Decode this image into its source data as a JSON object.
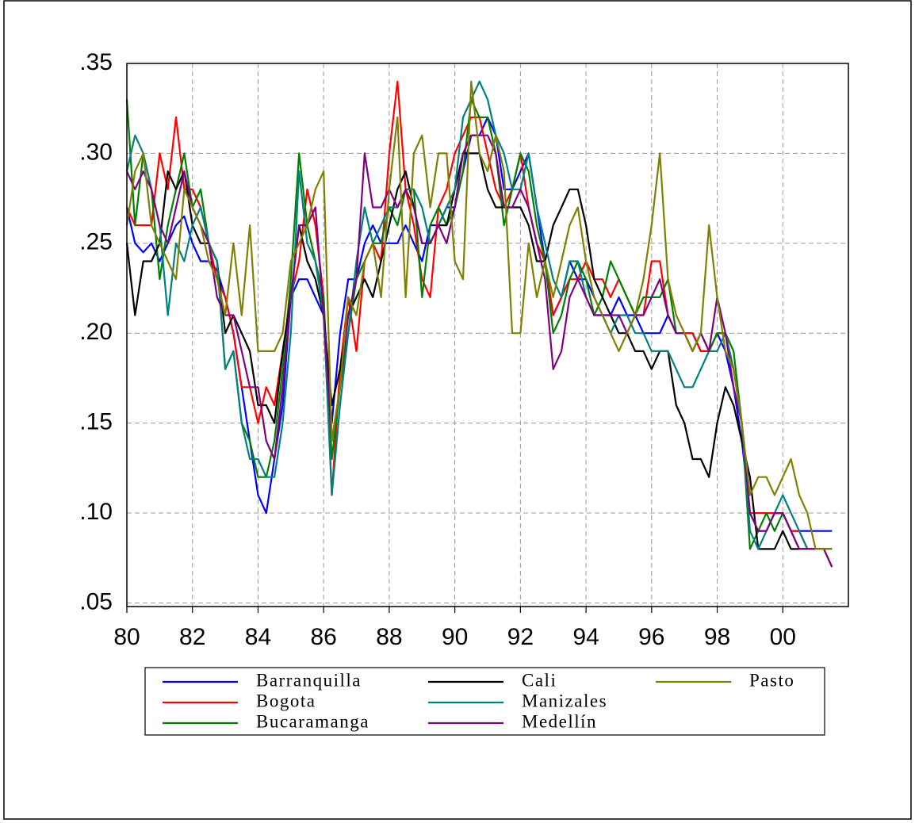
{
  "chart_data": {
    "type": "line",
    "x": [
      1980,
      1980.25,
      1980.5,
      1980.75,
      1981,
      1981.25,
      1981.5,
      1981.75,
      1982,
      1982.25,
      1982.5,
      1982.75,
      1983,
      1983.25,
      1983.5,
      1983.75,
      1984,
      1984.25,
      1984.5,
      1984.75,
      1985,
      1985.25,
      1985.5,
      1985.75,
      1986,
      1986.25,
      1986.5,
      1986.75,
      1987,
      1987.25,
      1987.5,
      1987.75,
      1988,
      1988.25,
      1988.5,
      1988.75,
      1989,
      1989.25,
      1989.5,
      1989.75,
      1990,
      1990.25,
      1990.5,
      1990.75,
      1991,
      1991.25,
      1991.5,
      1991.75,
      1992,
      1992.25,
      1992.5,
      1992.75,
      1993,
      1993.25,
      1993.5,
      1993.75,
      1994,
      1994.25,
      1994.5,
      1994.75,
      1995,
      1995.25,
      1995.5,
      1995.75,
      1996,
      1996.25,
      1996.5,
      1996.75,
      1997,
      1997.25,
      1997.5,
      1997.75,
      1998,
      1998.25,
      1998.5,
      1998.75,
      1999,
      1999.25,
      1999.5,
      1999.75,
      2000,
      2000.25,
      2000.5,
      2000.75,
      2001,
      2001.25,
      2001.5
    ],
    "series": [
      {
        "name": "Barranquilla",
        "color": "#0000ff",
        "values": [
          0.27,
          0.25,
          0.245,
          0.25,
          0.24,
          0.25,
          0.26,
          0.265,
          0.25,
          0.24,
          0.24,
          0.235,
          0.22,
          0.2,
          0.17,
          0.14,
          0.11,
          0.1,
          0.13,
          0.16,
          0.22,
          0.23,
          0.23,
          0.22,
          0.21,
          0.15,
          0.2,
          0.23,
          0.23,
          0.25,
          0.26,
          0.25,
          0.25,
          0.25,
          0.26,
          0.25,
          0.24,
          0.26,
          0.26,
          0.27,
          0.27,
          0.29,
          0.31,
          0.31,
          0.32,
          0.31,
          0.28,
          0.28,
          0.29,
          0.3,
          0.27,
          0.24,
          0.21,
          0.22,
          0.24,
          0.23,
          0.23,
          0.22,
          0.21,
          0.21,
          0.22,
          0.21,
          0.21,
          0.2,
          0.2,
          0.2,
          0.21,
          0.2,
          0.2,
          0.2,
          0.19,
          0.19,
          0.2,
          0.19,
          0.17,
          0.14,
          0.1,
          0.09,
          0.09,
          0.1,
          0.1,
          0.09,
          0.09,
          0.09,
          0.09,
          0.09,
          0.09
        ]
      },
      {
        "name": "Bogota",
        "color": "#ff0000",
        "values": [
          0.27,
          0.26,
          0.26,
          0.26,
          0.3,
          0.28,
          0.32,
          0.28,
          0.28,
          0.27,
          0.25,
          0.23,
          0.22,
          0.2,
          0.17,
          0.17,
          0.15,
          0.17,
          0.16,
          0.19,
          0.22,
          0.24,
          0.28,
          0.26,
          0.22,
          0.11,
          0.18,
          0.22,
          0.19,
          0.24,
          0.25,
          0.24,
          0.3,
          0.34,
          0.28,
          0.26,
          0.23,
          0.22,
          0.27,
          0.28,
          0.3,
          0.31,
          0.32,
          0.32,
          0.3,
          0.28,
          0.27,
          0.28,
          0.3,
          0.27,
          0.25,
          0.24,
          0.21,
          0.22,
          0.23,
          0.23,
          0.24,
          0.23,
          0.23,
          0.22,
          0.23,
          0.22,
          0.21,
          0.21,
          0.24,
          0.24,
          0.21,
          0.2,
          0.2,
          0.2,
          0.19,
          0.19,
          0.2,
          0.2,
          0.18,
          0.15,
          0.1,
          0.1,
          0.1,
          0.1,
          0.1,
          0.09,
          0.09,
          0.08,
          0.08,
          0.08,
          0.07
        ]
      },
      {
        "name": "Bucaramanga",
        "color": "#008000",
        "values": [
          0.33,
          0.26,
          0.3,
          0.28,
          0.23,
          0.26,
          0.28,
          0.3,
          0.27,
          0.28,
          0.25,
          0.24,
          0.18,
          0.19,
          0.15,
          0.14,
          0.12,
          0.12,
          0.14,
          0.18,
          0.23,
          0.3,
          0.26,
          0.24,
          0.22,
          0.13,
          0.17,
          0.2,
          0.23,
          0.24,
          0.25,
          0.25,
          0.27,
          0.26,
          0.28,
          0.28,
          0.22,
          0.26,
          0.27,
          0.26,
          0.27,
          0.29,
          0.33,
          0.32,
          0.32,
          0.3,
          0.26,
          0.28,
          0.3,
          0.29,
          0.26,
          0.24,
          0.2,
          0.21,
          0.23,
          0.24,
          0.23,
          0.21,
          0.22,
          0.24,
          0.23,
          0.22,
          0.21,
          0.22,
          0.22,
          0.22,
          0.23,
          0.2,
          0.2,
          0.19,
          0.2,
          0.19,
          0.2,
          0.2,
          0.19,
          0.15,
          0.08,
          0.09,
          0.1,
          0.09,
          0.1,
          0.09,
          0.08,
          0.08,
          0.08,
          0.08,
          0.08
        ]
      },
      {
        "name": "Cali",
        "color": "#000000",
        "values": [
          0.25,
          0.21,
          0.24,
          0.24,
          0.25,
          0.29,
          0.28,
          0.29,
          0.26,
          0.25,
          0.25,
          0.24,
          0.2,
          0.21,
          0.2,
          0.19,
          0.16,
          0.16,
          0.15,
          0.19,
          0.22,
          0.26,
          0.24,
          0.23,
          0.21,
          0.16,
          0.18,
          0.21,
          0.22,
          0.23,
          0.22,
          0.24,
          0.26,
          0.28,
          0.29,
          0.27,
          0.25,
          0.25,
          0.26,
          0.26,
          0.28,
          0.3,
          0.3,
          0.3,
          0.28,
          0.27,
          0.27,
          0.27,
          0.27,
          0.26,
          0.24,
          0.24,
          0.26,
          0.27,
          0.28,
          0.28,
          0.26,
          0.23,
          0.22,
          0.21,
          0.2,
          0.2,
          0.19,
          0.19,
          0.18,
          0.19,
          0.19,
          0.16,
          0.15,
          0.13,
          0.13,
          0.12,
          0.15,
          0.17,
          0.16,
          0.14,
          0.12,
          0.08,
          0.08,
          0.08,
          0.09,
          0.08,
          0.08,
          0.08,
          0.08,
          0.08,
          0.08
        ]
      },
      {
        "name": "Manizales",
        "color": "#008080",
        "values": [
          0.29,
          0.31,
          0.3,
          0.28,
          0.26,
          0.21,
          0.25,
          0.24,
          0.26,
          0.27,
          0.25,
          0.24,
          0.18,
          0.19,
          0.15,
          0.13,
          0.13,
          0.12,
          0.12,
          0.15,
          0.2,
          0.29,
          0.25,
          0.24,
          0.21,
          0.11,
          0.16,
          0.2,
          0.24,
          0.27,
          0.25,
          0.26,
          0.27,
          0.27,
          0.28,
          0.28,
          0.27,
          0.25,
          0.26,
          0.27,
          0.28,
          0.32,
          0.33,
          0.34,
          0.33,
          0.31,
          0.3,
          0.28,
          0.28,
          0.3,
          0.27,
          0.25,
          0.23,
          0.22,
          0.24,
          0.24,
          0.22,
          0.21,
          0.21,
          0.2,
          0.21,
          0.21,
          0.2,
          0.2,
          0.19,
          0.19,
          0.19,
          0.18,
          0.17,
          0.17,
          0.18,
          0.19,
          0.19,
          0.2,
          0.18,
          0.15,
          0.09,
          0.08,
          0.09,
          0.1,
          0.11,
          0.1,
          0.09,
          0.08,
          0.08,
          0.08,
          0.08
        ]
      },
      {
        "name": "Medellín",
        "color": "#800080",
        "values": [
          0.29,
          0.28,
          0.29,
          0.28,
          0.26,
          0.25,
          0.27,
          0.29,
          0.27,
          0.26,
          0.25,
          0.22,
          0.21,
          0.21,
          0.19,
          0.17,
          0.17,
          0.14,
          0.13,
          0.17,
          0.22,
          0.26,
          0.26,
          0.27,
          0.21,
          0.14,
          0.17,
          0.21,
          0.23,
          0.3,
          0.27,
          0.27,
          0.28,
          0.27,
          0.28,
          0.27,
          0.25,
          0.25,
          0.26,
          0.25,
          0.27,
          0.3,
          0.31,
          0.31,
          0.31,
          0.3,
          0.27,
          0.27,
          0.28,
          0.27,
          0.25,
          0.23,
          0.18,
          0.19,
          0.22,
          0.23,
          0.22,
          0.21,
          0.21,
          0.21,
          0.21,
          0.2,
          0.21,
          0.21,
          0.22,
          0.23,
          0.21,
          0.2,
          0.2,
          0.19,
          0.2,
          0.19,
          0.22,
          0.2,
          0.17,
          0.15,
          0.1,
          0.09,
          0.09,
          0.1,
          0.1,
          0.09,
          0.08,
          0.08,
          0.08,
          0.08,
          0.07
        ]
      },
      {
        "name": "Pasto",
        "color": "#808000",
        "values": [
          0.26,
          0.29,
          0.3,
          0.26,
          0.25,
          0.24,
          0.23,
          0.28,
          0.27,
          0.26,
          0.24,
          0.23,
          0.21,
          0.25,
          0.21,
          0.26,
          0.19,
          0.19,
          0.19,
          0.2,
          0.24,
          0.25,
          0.26,
          0.28,
          0.29,
          0.14,
          0.17,
          0.22,
          0.21,
          0.24,
          0.25,
          0.22,
          0.28,
          0.32,
          0.22,
          0.3,
          0.31,
          0.27,
          0.3,
          0.3,
          0.24,
          0.23,
          0.34,
          0.3,
          0.29,
          0.31,
          0.29,
          0.2,
          0.2,
          0.25,
          0.22,
          0.24,
          0.22,
          0.24,
          0.26,
          0.27,
          0.24,
          0.22,
          0.21,
          0.2,
          0.19,
          0.2,
          0.21,
          0.23,
          0.26,
          0.3,
          0.23,
          0.21,
          0.2,
          0.19,
          0.2,
          0.26,
          0.22,
          0.19,
          0.18,
          0.15,
          0.11,
          0.12,
          0.12,
          0.11,
          0.12,
          0.13,
          0.11,
          0.1,
          0.08,
          0.08,
          0.08
        ]
      }
    ],
    "xlim": [
      1980,
      2002
    ],
    "xticks": [
      {
        "value": 1980,
        "label": "80"
      },
      {
        "value": 1982,
        "label": "82"
      },
      {
        "value": 1984,
        "label": "84"
      },
      {
        "value": 1986,
        "label": "86"
      },
      {
        "value": 1988,
        "label": "88"
      },
      {
        "value": 1990,
        "label": "90"
      },
      {
        "value": 1992,
        "label": "92"
      },
      {
        "value": 1994,
        "label": "94"
      },
      {
        "value": 1996,
        "label": "96"
      },
      {
        "value": 1998,
        "label": "98"
      },
      {
        "value": 2000,
        "label": "00"
      }
    ],
    "ylim": [
      0.048,
      0.35
    ],
    "yticks": [
      {
        "value": 0.05,
        "label": ".05"
      },
      {
        "value": 0.1,
        "label": ".10"
      },
      {
        "value": 0.15,
        "label": ".15"
      },
      {
        "value": 0.2,
        "label": ".20"
      },
      {
        "value": 0.25,
        "label": ".25"
      },
      {
        "value": 0.3,
        "label": ".30"
      },
      {
        "value": 0.35,
        "label": ".35"
      }
    ],
    "grid": true
  }
}
